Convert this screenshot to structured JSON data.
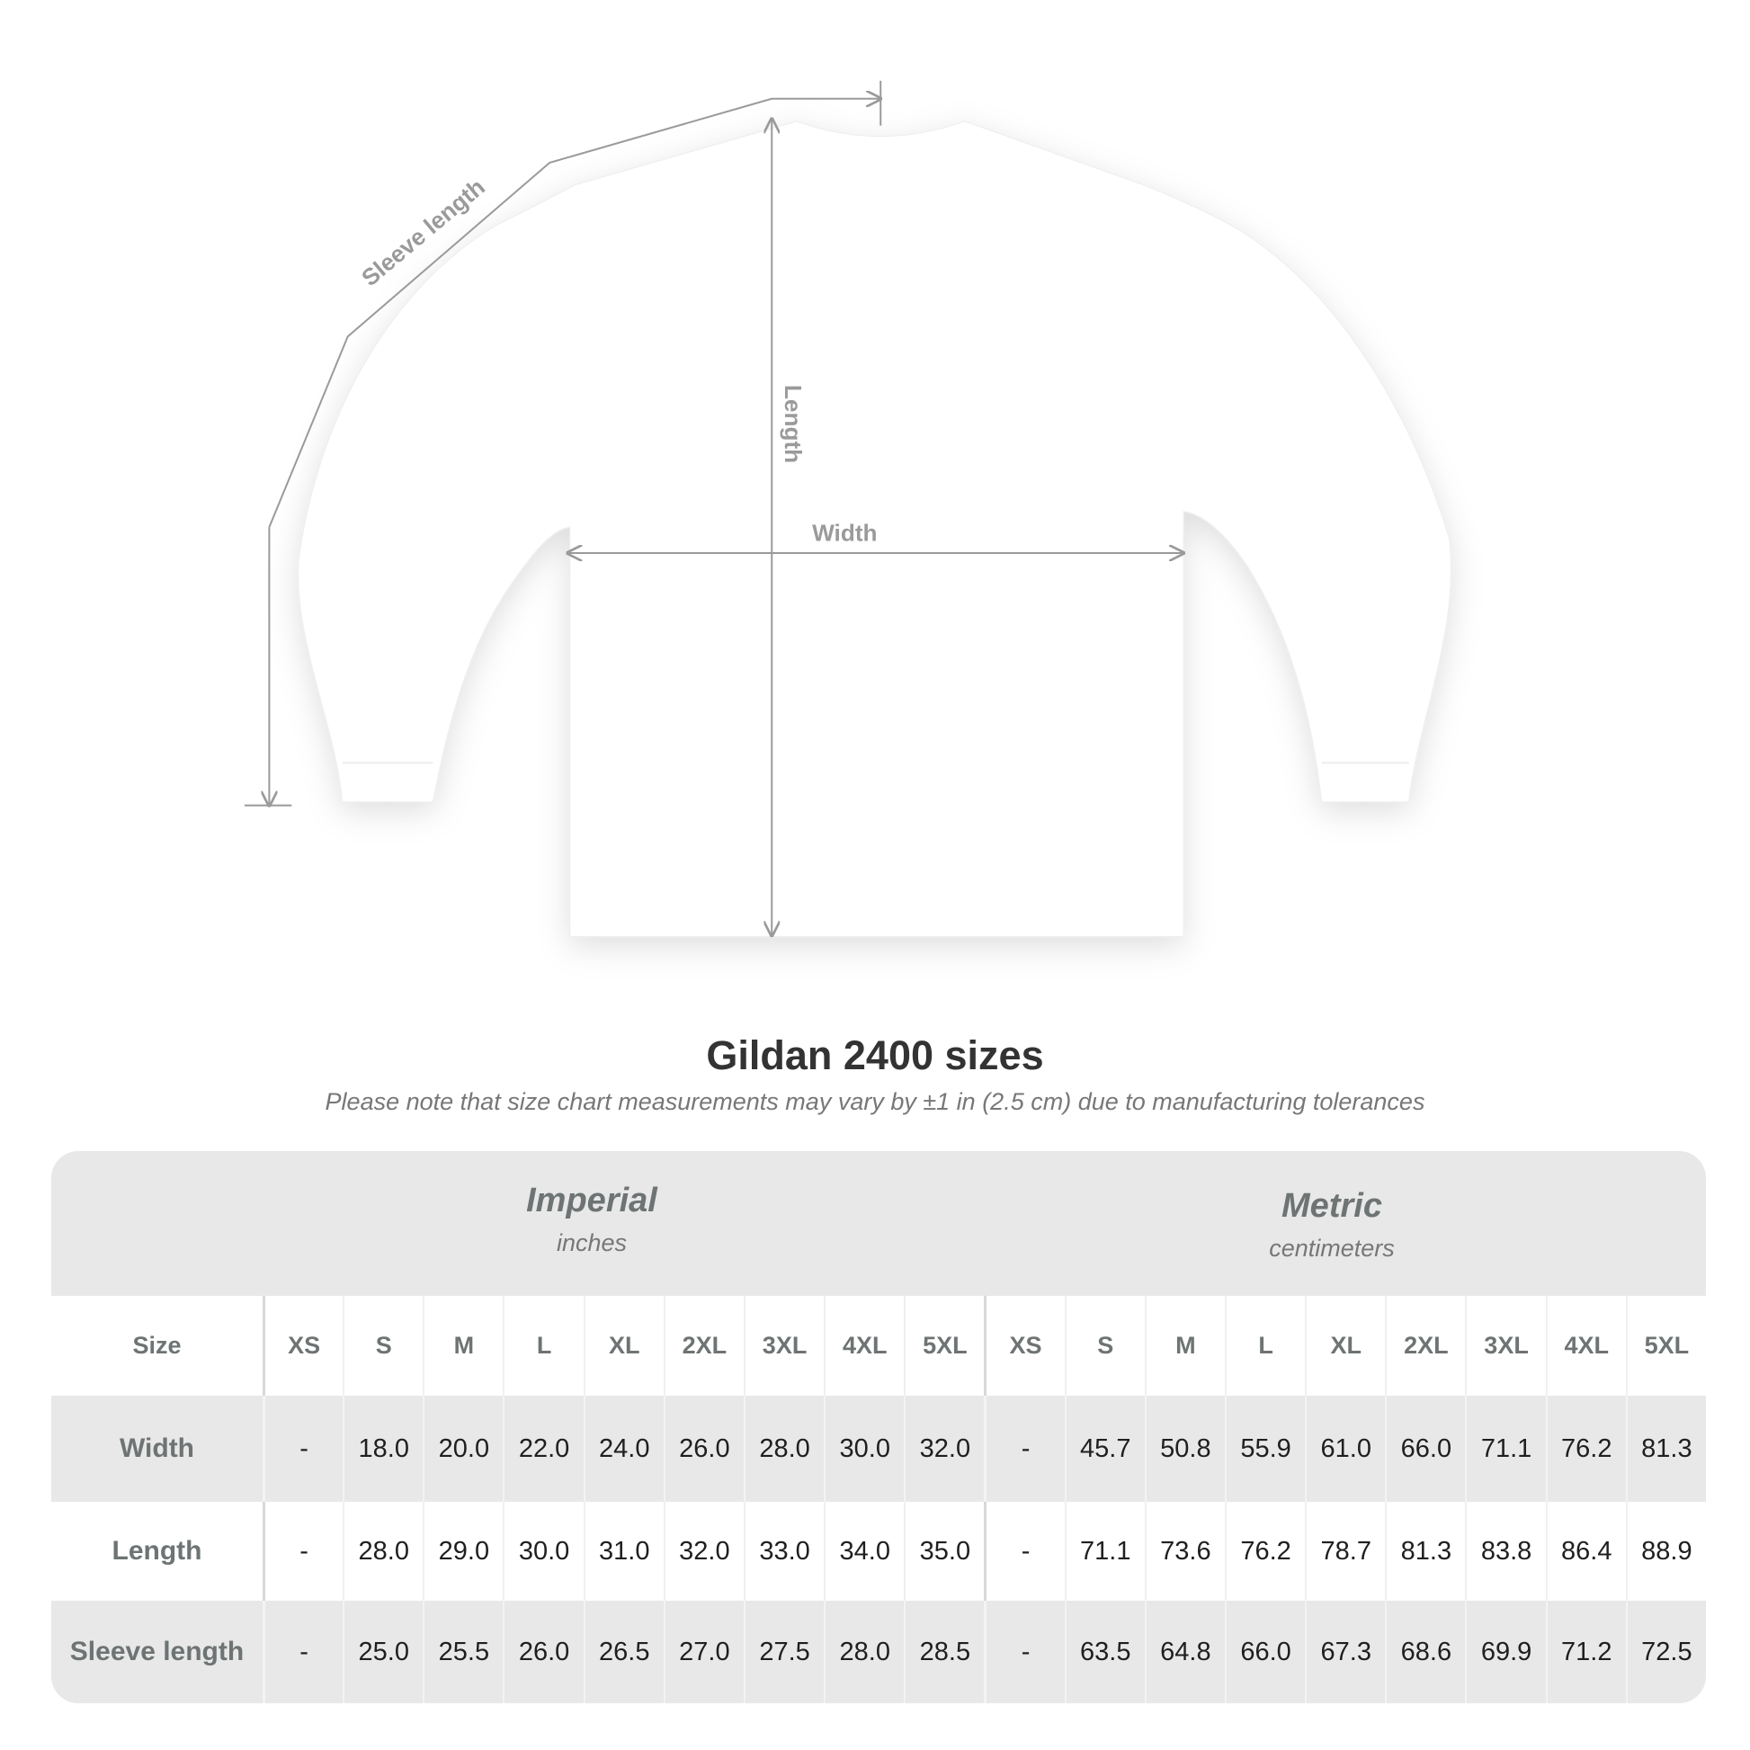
{
  "diagram": {
    "labels": {
      "sleeve": "Sleeve length",
      "length": "Length",
      "width": "Width"
    },
    "line_color": "#9a9a9a",
    "shirt_color": "#ffffff"
  },
  "title": "Gildan 2400 sizes",
  "note": "Please note that size chart measurements may vary by ±1 in (2.5 cm) due to manufacturing tolerances",
  "table": {
    "imperial": {
      "title": "Imperial",
      "unit": "inches"
    },
    "metric": {
      "title": "Metric",
      "unit": "centimeters"
    },
    "size_label": "Size",
    "sizes": [
      "XS",
      "S",
      "M",
      "L",
      "XL",
      "2XL",
      "3XL",
      "4XL",
      "5XL",
      "XS",
      "S",
      "M",
      "L",
      "XL",
      "2XL",
      "3XL",
      "4XL",
      "5XL"
    ],
    "rows": [
      {
        "label": "Width",
        "values": [
          "-",
          "18.0",
          "20.0",
          "22.0",
          "24.0",
          "26.0",
          "28.0",
          "30.0",
          "32.0",
          "-",
          "45.7",
          "50.8",
          "55.9",
          "61.0",
          "66.0",
          "71.1",
          "76.2",
          "81.3"
        ]
      },
      {
        "label": "Length",
        "values": [
          "-",
          "28.0",
          "29.0",
          "30.0",
          "31.0",
          "32.0",
          "33.0",
          "34.0",
          "35.0",
          "-",
          "71.1",
          "73.6",
          "76.2",
          "78.7",
          "81.3",
          "83.8",
          "86.4",
          "88.9"
        ]
      },
      {
        "label": "Sleeve length",
        "values": [
          "-",
          "25.0",
          "25.5",
          "26.0",
          "26.5",
          "27.0",
          "27.5",
          "28.0",
          "28.5",
          "-",
          "63.5",
          "64.8",
          "66.0",
          "67.3",
          "68.6",
          "69.9",
          "71.2",
          "72.5"
        ]
      }
    ]
  }
}
